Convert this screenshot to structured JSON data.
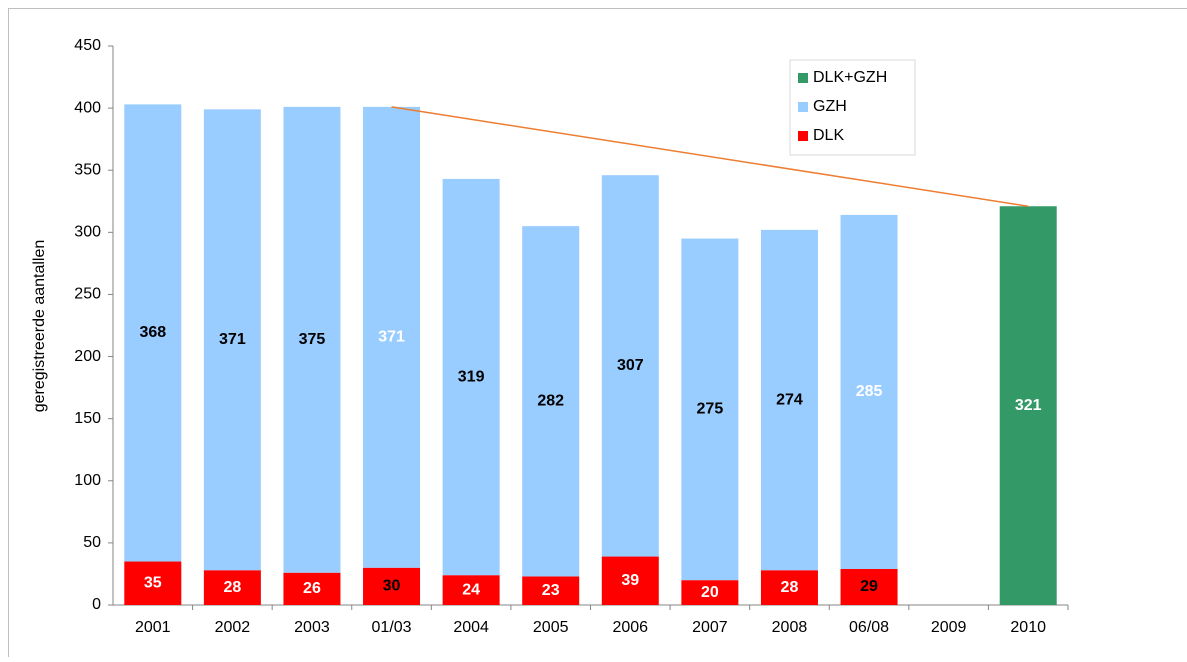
{
  "chart_data": {
    "type": "stacked_bar",
    "ylabel": "geregistreerde aantallen",
    "categories": [
      "2001",
      "2002",
      "2003",
      "01/03",
      "2004",
      "2005",
      "2006",
      "2007",
      "2008",
      "06/08",
      "2009",
      "2010"
    ],
    "series": [
      {
        "name": "DLK",
        "color": "#ff0000",
        "values": [
          35,
          28,
          26,
          30,
          24,
          23,
          39,
          20,
          28,
          29,
          null,
          null
        ],
        "label_colors": [
          "#ffffff",
          "#ffffff",
          "#ffffff",
          "#000000",
          "#ffffff",
          "#ffffff",
          "#ffffff",
          "#ffffff",
          "#ffffff",
          "#000000",
          null,
          null
        ]
      },
      {
        "name": "GZH",
        "color": "#99ccff",
        "values": [
          368,
          371,
          375,
          371,
          319,
          282,
          307,
          275,
          274,
          285,
          null,
          null
        ],
        "label_colors": [
          "#000000",
          "#000000",
          "#000000",
          "#ffffff",
          "#000000",
          "#000000",
          "#000000",
          "#000000",
          "#000000",
          "#ffffff",
          null,
          null
        ]
      },
      {
        "name": "DLK+GZH",
        "color": "#339966",
        "values": [
          null,
          null,
          null,
          null,
          null,
          null,
          null,
          null,
          null,
          null,
          null,
          321
        ],
        "label_colors": [
          null,
          null,
          null,
          null,
          null,
          null,
          null,
          null,
          null,
          null,
          null,
          "#ffffff"
        ]
      }
    ],
    "trend": {
      "color": "#ed7d31",
      "x": [
        "01/03",
        "2010"
      ],
      "values": [
        401,
        321
      ]
    },
    "ylim": [
      0,
      450
    ],
    "yticks": [
      0,
      50,
      100,
      150,
      200,
      250,
      300,
      350,
      400,
      450
    ],
    "legend": "top-right"
  }
}
